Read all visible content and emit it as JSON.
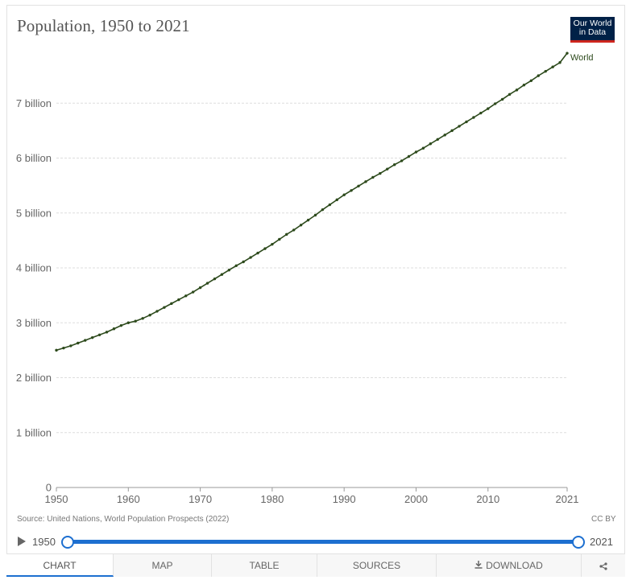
{
  "header": {
    "title": "Population, 1950 to 2021",
    "logo_line1": "Our World",
    "logo_line2": "in Data"
  },
  "footer": {
    "source": "Source: United Nations, World Population Prospects (2022)",
    "license": "CC BY"
  },
  "timeline": {
    "start_label": "1950",
    "end_label": "2021",
    "range_start": 1950,
    "range_end": 2021
  },
  "tabs": [
    {
      "label": "CHART",
      "active": true
    },
    {
      "label": "MAP",
      "active": false
    },
    {
      "label": "TABLE",
      "active": false
    },
    {
      "label": "SOURCES",
      "active": false
    },
    {
      "label": "DOWNLOAD",
      "active": false,
      "icon": "download-icon"
    },
    {
      "label": "",
      "active": false,
      "icon": "share-icon"
    }
  ],
  "colors": {
    "series": "#2d4a1c",
    "accent": "#1d6fd0",
    "logo_bg": "#002147",
    "logo_bar": "#ce261e"
  },
  "chart_data": {
    "type": "line",
    "title": "Population, 1950 to 2021",
    "xlabel": "",
    "ylabel": "",
    "xlim": [
      1950,
      2021
    ],
    "ylim": [
      0,
      8
    ],
    "x_ticks": [
      1950,
      1960,
      1970,
      1980,
      1990,
      2000,
      2010,
      2021
    ],
    "y_ticks": [
      0,
      1,
      2,
      3,
      4,
      5,
      6,
      7
    ],
    "y_tick_labels": [
      "0",
      "1 billion",
      "2 billion",
      "3 billion",
      "4 billion",
      "5 billion",
      "6 billion",
      "7 billion"
    ],
    "grid": true,
    "series": [
      {
        "name": "World",
        "x": [
          1950,
          1951,
          1952,
          1953,
          1954,
          1955,
          1956,
          1957,
          1958,
          1959,
          1960,
          1961,
          1962,
          1963,
          1964,
          1965,
          1966,
          1967,
          1968,
          1969,
          1970,
          1971,
          1972,
          1973,
          1974,
          1975,
          1976,
          1977,
          1978,
          1979,
          1980,
          1981,
          1982,
          1983,
          1984,
          1985,
          1986,
          1987,
          1988,
          1989,
          1990,
          1991,
          1992,
          1993,
          1994,
          1995,
          1996,
          1997,
          1998,
          1999,
          2000,
          2001,
          2002,
          2003,
          2004,
          2005,
          2006,
          2007,
          2008,
          2009,
          2010,
          2011,
          2012,
          2013,
          2014,
          2015,
          2016,
          2017,
          2018,
          2019,
          2020,
          2021
        ],
        "values": [
          2.5,
          2.54,
          2.58,
          2.63,
          2.68,
          2.73,
          2.78,
          2.83,
          2.89,
          2.95,
          3.0,
          3.03,
          3.08,
          3.14,
          3.21,
          3.28,
          3.35,
          3.42,
          3.49,
          3.56,
          3.64,
          3.72,
          3.8,
          3.88,
          3.96,
          4.04,
          4.11,
          4.19,
          4.27,
          4.35,
          4.43,
          4.52,
          4.61,
          4.69,
          4.78,
          4.87,
          4.96,
          5.06,
          5.15,
          5.24,
          5.33,
          5.41,
          5.49,
          5.57,
          5.65,
          5.72,
          5.8,
          5.88,
          5.95,
          6.03,
          6.11,
          6.18,
          6.26,
          6.34,
          6.42,
          6.5,
          6.58,
          6.66,
          6.74,
          6.82,
          6.9,
          6.99,
          7.07,
          7.16,
          7.24,
          7.33,
          7.41,
          7.5,
          7.58,
          7.66,
          7.74,
          7.91
        ]
      }
    ]
  }
}
